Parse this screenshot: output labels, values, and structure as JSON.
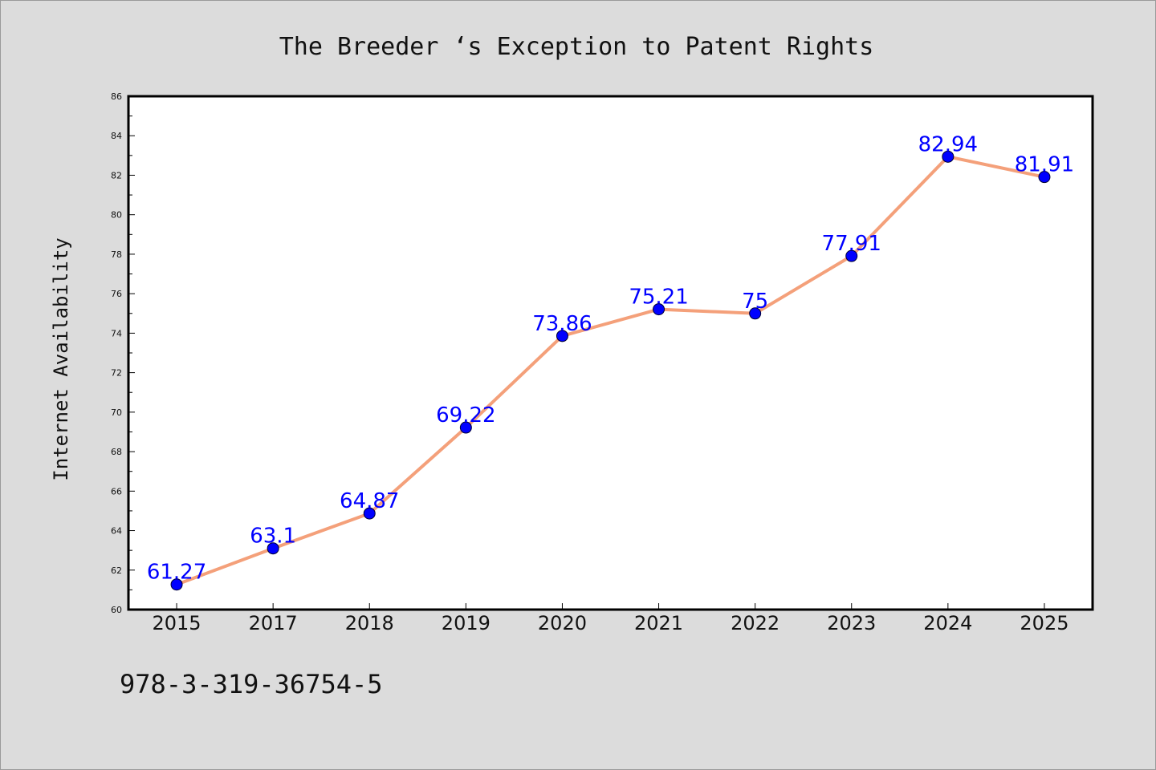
{
  "chart_data": {
    "type": "line",
    "title": "The Breeder ‘s Exception to Patent Rights",
    "xlabel": "",
    "ylabel": "Internet Availability",
    "categories": [
      "2015",
      "2017",
      "2018",
      "2019",
      "2020",
      "2021",
      "2022",
      "2023",
      "2024",
      "2025"
    ],
    "series": [
      {
        "values": [
          61.27,
          63.1,
          64.87,
          69.22,
          73.86,
          75.21,
          75,
          77.91,
          82.94,
          81.91
        ],
        "labels": [
          "61.27",
          "63.1",
          "64.87",
          "69.22",
          "73.86",
          "75.21",
          "75",
          "77.91",
          "82.94",
          "81.91"
        ]
      }
    ],
    "ylim": [
      60,
      86
    ],
    "yticks": [
      "60",
      "62",
      "64",
      "66",
      "68",
      "70",
      "72",
      "74",
      "76",
      "78",
      "80",
      "82",
      "84",
      "86"
    ],
    "grid": false,
    "colors": {
      "line": "#f4a07a",
      "marker": "#0000ff",
      "data_label": "#0000ff",
      "background": "#dcdcdc",
      "plot_area": "#ffffff"
    }
  },
  "footer": {
    "isbn": "978-3-319-36754-5"
  }
}
